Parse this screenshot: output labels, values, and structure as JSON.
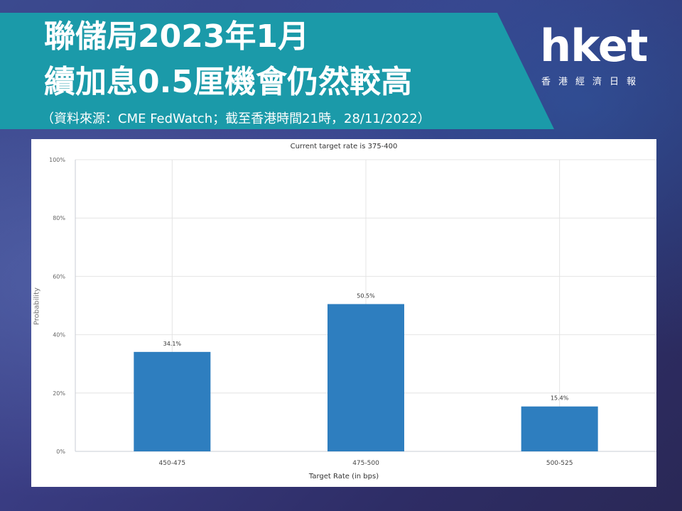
{
  "header": {
    "title_line1": "聯儲局2023年1月",
    "title_line2": "續加息0.5厘機會仍然較高",
    "subtitle": "（資料來源：CME FedWatch；截至香港時間21時，28/11/2022）"
  },
  "logo": {
    "main": "hket",
    "sub": "香港經濟日報"
  },
  "colors": {
    "banner": "#1b9aa9",
    "bar": "#2e7ebf",
    "background": "#3a3d84"
  },
  "chart_data": {
    "type": "bar",
    "title": "Current target rate is 375-400",
    "xlabel": "Target Rate (in bps)",
    "ylabel": "Probability",
    "categories": [
      "450-475",
      "475-500",
      "500-525"
    ],
    "values": [
      34.1,
      50.5,
      15.4
    ],
    "data_labels": [
      "34.1%",
      "50.5%",
      "15.4%"
    ],
    "ylim": [
      0,
      100
    ],
    "yticks": [
      "0%",
      "20%",
      "40%",
      "60%",
      "80%",
      "100%"
    ],
    "grid": true,
    "legend": "none"
  }
}
